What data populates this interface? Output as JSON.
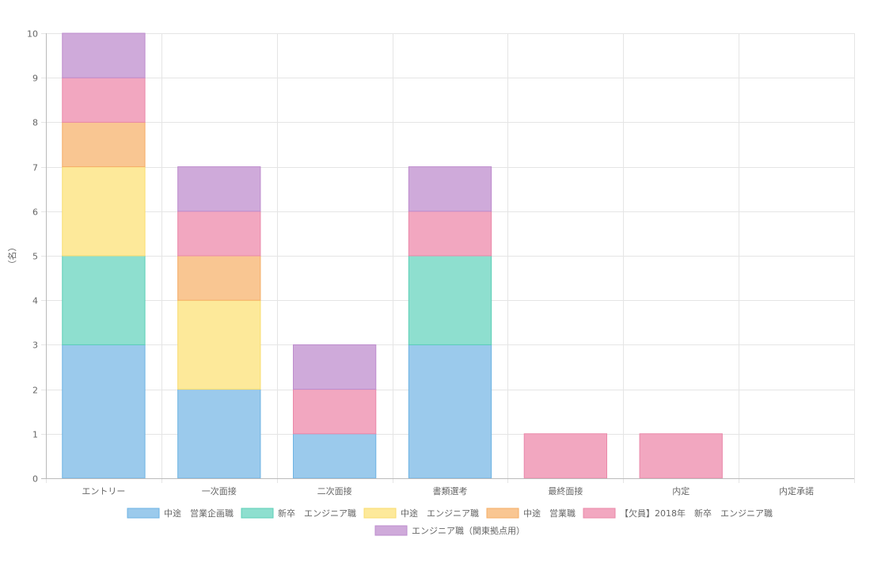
{
  "colors": {
    "grid": "#e5e5e5",
    "axis": "#bbbbbb",
    "text": "#666666"
  },
  "chart_data": {
    "type": "bar",
    "stacked": true,
    "ylabel": "（名）",
    "ylim": [
      0,
      10
    ],
    "y_ticks": [
      0,
      1,
      2,
      3,
      4,
      5,
      6,
      7,
      8,
      9,
      10
    ],
    "grid": true,
    "legend_position": "bottom",
    "categories": [
      "エントリー",
      "一次面接",
      "二次面接",
      "書類選考",
      "最終面接",
      "内定",
      "内定承諾"
    ],
    "series": [
      {
        "name": "中途　営業企画職",
        "color": "#9bcaec",
        "border": "#6db3e3",
        "values": [
          3,
          2,
          1,
          3,
          0,
          0,
          0
        ]
      },
      {
        "name": "新卒　エンジニア職",
        "color": "#8edfcf",
        "border": "#5ccfb7",
        "values": [
          2,
          0,
          0,
          2,
          0,
          0,
          0
        ]
      },
      {
        "name": "中途　エンジニア職",
        "color": "#fde99a",
        "border": "#f9dc6e",
        "values": [
          2,
          2,
          0,
          0,
          0,
          0,
          0
        ]
      },
      {
        "name": "中途　営業職",
        "color": "#f9c692",
        "border": "#f5ad66",
        "values": [
          1,
          1,
          0,
          0,
          0,
          0,
          0
        ]
      },
      {
        "name": "【欠員】2018年　新卒　エンジニア職",
        "color": "#f2a7c0",
        "border": "#ea88a9",
        "values": [
          1,
          1,
          1,
          1,
          1,
          1,
          0
        ]
      },
      {
        "name": "エンジニア職（関東拠点用）",
        "color": "#cfaada",
        "border": "#bd8ccd",
        "values": [
          1,
          1,
          1,
          1,
          0,
          0,
          0
        ]
      }
    ]
  }
}
